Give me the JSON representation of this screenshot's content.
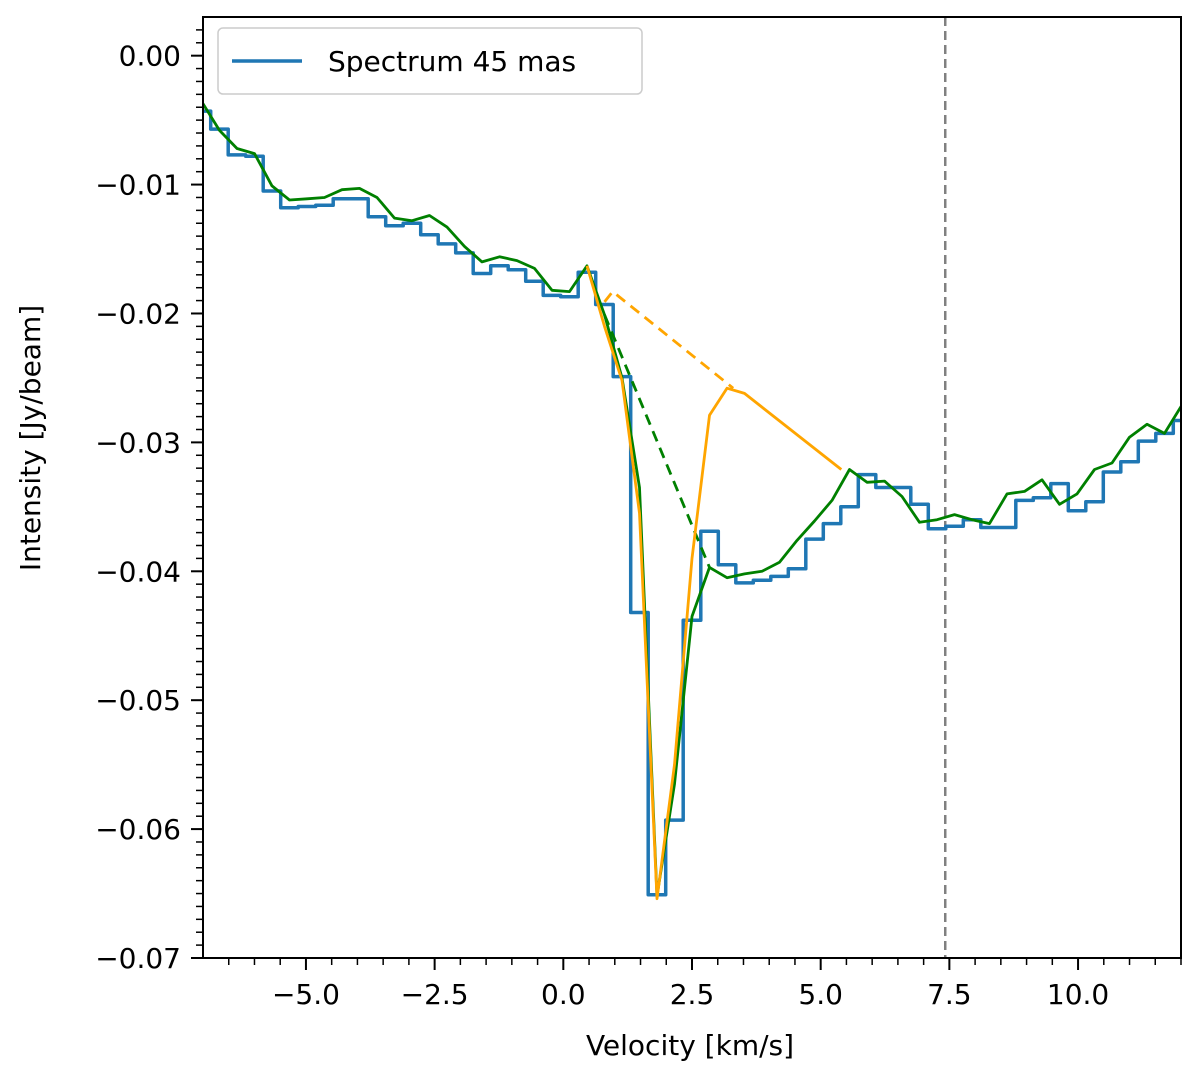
{
  "chart_data": {
    "type": "line",
    "title": "",
    "xlabel": "Velocity [km/s]",
    "ylabel": "Intensity [Jy/beam]",
    "xlim": [
      -7.0,
      12.0
    ],
    "ylim": [
      -0.07,
      0.003
    ],
    "xticks": [
      -5.0,
      -2.5,
      0.0,
      2.5,
      5.0,
      7.5,
      10.0
    ],
    "xtick_labels": [
      "−5.0",
      "−2.5",
      "0.0",
      "2.5",
      "5.0",
      "7.5",
      "10.0"
    ],
    "yticks": [
      0.0,
      -0.01,
      -0.02,
      -0.03,
      -0.04,
      -0.05,
      -0.06,
      -0.07
    ],
    "ytick_labels": [
      "0.00",
      "−0.01",
      "−0.02",
      "−0.03",
      "−0.04",
      "−0.05",
      "−0.06",
      "−0.07"
    ],
    "grid": false,
    "legend_position": "top-left",
    "vertical_line": {
      "x": 7.42,
      "color": "#808080",
      "style": "dashed"
    },
    "series": [
      {
        "name": "Spectrum 45 mas",
        "style": "step",
        "color": "#1f77b4",
        "x": [
          -7.02,
          -6.68,
          -6.34,
          -6.0,
          -5.66,
          -5.32,
          -4.98,
          -4.64,
          -4.3,
          -3.96,
          -3.62,
          -3.28,
          -2.94,
          -2.6,
          -2.26,
          -1.92,
          -1.58,
          -1.24,
          -0.9,
          -0.56,
          -0.22,
          0.12,
          0.46,
          0.8,
          1.14,
          1.48,
          1.82,
          2.16,
          2.5,
          2.84,
          3.18,
          3.52,
          3.86,
          4.2,
          4.54,
          4.88,
          5.22,
          5.56,
          5.9,
          6.24,
          6.58,
          6.92,
          7.26,
          7.6,
          7.94,
          8.28,
          8.62,
          8.96,
          9.3,
          9.64,
          9.98,
          10.32,
          10.66,
          11.0,
          11.34,
          11.68,
          12.02
        ],
        "y": [
          -0.0043,
          -0.0057,
          -0.0077,
          -0.0078,
          -0.0105,
          -0.0118,
          -0.0117,
          -0.0116,
          -0.0111,
          -0.0111,
          -0.0125,
          -0.0132,
          -0.013,
          -0.0139,
          -0.0146,
          -0.0153,
          -0.0169,
          -0.0163,
          -0.0166,
          -0.0175,
          -0.0186,
          -0.0187,
          -0.0168,
          -0.0193,
          -0.0249,
          -0.0432,
          -0.0651,
          -0.0593,
          -0.0438,
          -0.0369,
          -0.0395,
          -0.0409,
          -0.0407,
          -0.0404,
          -0.0398,
          -0.0375,
          -0.0363,
          -0.035,
          -0.0325,
          -0.0335,
          -0.0335,
          -0.0348,
          -0.0367,
          -0.0365,
          -0.036,
          -0.0366,
          -0.0366,
          -0.0345,
          -0.0343,
          -0.0332,
          -0.0353,
          -0.0346,
          -0.0323,
          -0.0315,
          -0.0299,
          -0.0293,
          -0.0283
        ]
      },
      {
        "name": "",
        "style": "line",
        "color": "#008000",
        "x": [
          -7.02,
          -6.68,
          -6.34,
          -6.0,
          -5.66,
          -5.32,
          -4.98,
          -4.64,
          -4.3,
          -3.96,
          -3.62,
          -3.28,
          -2.94,
          -2.6,
          -2.26,
          -1.92,
          -1.58,
          -1.24,
          -0.9,
          -0.56,
          -0.22,
          0.12,
          0.46,
          0.8,
          1.14,
          1.48,
          1.82,
          2.16,
          2.5,
          2.84,
          3.18,
          3.52,
          3.86,
          4.2,
          4.54,
          4.88,
          5.22,
          5.56,
          5.9,
          6.24,
          6.58,
          6.92,
          7.26,
          7.6,
          7.94,
          8.28,
          8.62,
          8.96,
          9.3,
          9.64,
          9.98,
          10.32,
          10.66,
          11.0,
          11.34,
          11.68,
          12.02
        ],
        "y": [
          -0.0036,
          -0.0058,
          -0.0072,
          -0.0076,
          -0.0101,
          -0.0112,
          -0.0111,
          -0.011,
          -0.0104,
          -0.0103,
          -0.011,
          -0.0126,
          -0.0128,
          -0.0124,
          -0.0133,
          -0.0148,
          -0.016,
          -0.0156,
          -0.0159,
          -0.0165,
          -0.0182,
          -0.0183,
          -0.0163,
          -0.0201,
          -0.025,
          -0.0335,
          -0.0652,
          -0.0565,
          -0.0435,
          -0.0397,
          -0.0405,
          -0.0402,
          -0.04,
          -0.0393,
          -0.0376,
          -0.0361,
          -0.0345,
          -0.0321,
          -0.0331,
          -0.033,
          -0.0342,
          -0.0362,
          -0.036,
          -0.0356,
          -0.036,
          -0.0363,
          -0.034,
          -0.0338,
          -0.0329,
          -0.0348,
          -0.034,
          -0.0321,
          -0.0316,
          -0.0296,
          -0.0286,
          -0.0293,
          -0.0271
        ]
      },
      {
        "name": "",
        "style": "dashed",
        "color": "#008000",
        "x": [
          0.8,
          2.84
        ],
        "y": [
          -0.0201,
          -0.0397
        ]
      },
      {
        "name": "",
        "style": "line",
        "color": "#ffa500",
        "x": [
          0.46,
          0.8,
          1.14,
          1.48,
          1.82,
          2.16,
          2.5,
          2.84,
          3.18,
          3.52,
          5.4
        ],
        "y": [
          -0.0163,
          -0.021,
          -0.0252,
          -0.0355,
          -0.0654,
          -0.055,
          -0.039,
          -0.0279,
          -0.0258,
          -0.0262,
          -0.0321
        ]
      },
      {
        "name": "",
        "style": "dashed",
        "color": "#ffa500",
        "x": [
          0.8,
          0.96,
          3.3
        ],
        "y": [
          -0.0191,
          -0.0183,
          -0.0258
        ]
      }
    ]
  }
}
